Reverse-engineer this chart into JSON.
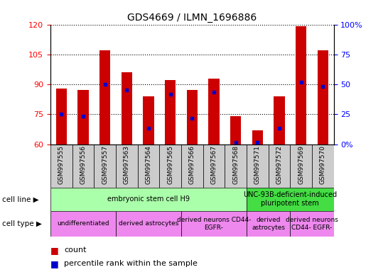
{
  "title": "GDS4669 / ILMN_1696886",
  "samples": [
    "GSM997555",
    "GSM997556",
    "GSM997557",
    "GSM997563",
    "GSM997564",
    "GSM997565",
    "GSM997566",
    "GSM997567",
    "GSM997568",
    "GSM997571",
    "GSM997572",
    "GSM997569",
    "GSM997570"
  ],
  "bar_heights": [
    88,
    87,
    107,
    96,
    84,
    92,
    87,
    93,
    74,
    67,
    84,
    119,
    107
  ],
  "bar_bottom": 60,
  "blue_dot_values": [
    75,
    74,
    90,
    87,
    68,
    85,
    73,
    86,
    61,
    61,
    68,
    91,
    89
  ],
  "ylim_left": [
    60,
    120
  ],
  "yticks_left": [
    60,
    75,
    90,
    105,
    120
  ],
  "ylim_right": [
    0,
    100
  ],
  "yticks_right": [
    0,
    25,
    50,
    75,
    100
  ],
  "bar_color": "#cc0000",
  "dot_color": "#0000cc",
  "cell_line_groups": [
    {
      "label": "embryonic stem cell H9",
      "start": 0,
      "end": 9,
      "color": "#aaffaa"
    },
    {
      "label": "UNC-93B-deficient-induced\npluripotent stem",
      "start": 9,
      "end": 13,
      "color": "#44dd44"
    }
  ],
  "cell_type_groups": [
    {
      "label": "undifferentiated",
      "start": 0,
      "end": 3
    },
    {
      "label": "derived astrocytes",
      "start": 3,
      "end": 6
    },
    {
      "label": "derived neurons CD44-\nEGFR-",
      "start": 6,
      "end": 9
    },
    {
      "label": "derived\nastrocytes",
      "start": 9,
      "end": 11
    },
    {
      "label": "derived neurons\nCD44- EGFR-",
      "start": 11,
      "end": 13
    }
  ],
  "cell_type_color": "#ee88ee",
  "legend_count_color": "#cc0000",
  "legend_pct_color": "#0000cc"
}
